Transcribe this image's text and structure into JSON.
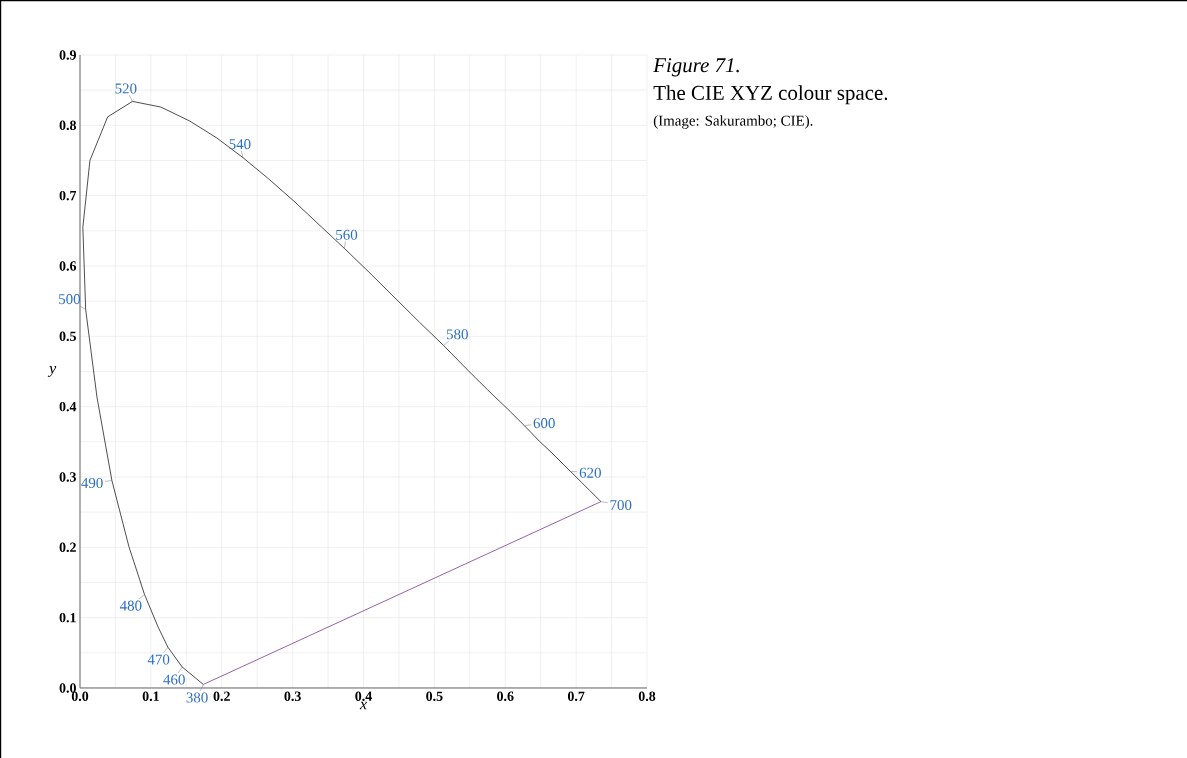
{
  "chart_data": {
    "type": "line",
    "title": "Figure 71.",
    "subtitle": "The CIE XYZ colour space.",
    "xlabel": "x",
    "ylabel": "y",
    "series": [
      {
        "color": "#000000",
        "x": [
          0.174,
          0.144,
          0.124,
          0.11,
          0.091,
          0.069,
          0.045,
          0.024,
          0.008,
          0.004,
          0.014,
          0.039,
          0.074,
          0.114,
          0.155,
          0.193,
          0.23,
          0.266,
          0.302,
          0.337,
          0.373,
          0.409,
          0.444,
          0.479,
          0.513,
          0.545,
          0.575,
          0.603,
          0.627,
          0.648,
          0.666,
          0.692,
          0.708,
          0.719,
          0.735
        ],
        "values": [
          0.005,
          0.03,
          0.058,
          0.087,
          0.133,
          0.201,
          0.295,
          0.413,
          0.538,
          0.655,
          0.75,
          0.812,
          0.834,
          0.826,
          0.806,
          0.782,
          0.754,
          0.724,
          0.692,
          0.659,
          0.625,
          0.59,
          0.555,
          0.52,
          0.487,
          0.454,
          0.424,
          0.397,
          0.373,
          0.351,
          0.334,
          0.308,
          0.292,
          0.281,
          0.265
        ]
      },
      {
        "color": "#6a1b8a",
        "x": [
          0.174,
          0.735
        ],
        "values": [
          0.005,
          0.265
        ]
      }
    ],
    "xlim": [
      0,
      0.8
    ],
    "ylim": [
      0,
      0.9
    ],
    "xticks": [
      {
        "value": 0,
        "label": "0.0"
      },
      0.1,
      0.2,
      0.3,
      0.4,
      0.5,
      0.6,
      0.7,
      0.8
    ],
    "yticks": [
      {
        "value": 0,
        "label": "0.0"
      },
      0.1,
      0.2,
      0.3,
      0.4,
      0.5,
      0.6,
      0.7,
      0.8,
      0.9
    ],
    "grid": true,
    "marker": "none",
    "line_style": "solid",
    "annotations": [
      {
        "text": "380",
        "x": 0.174,
        "y": 0.005
      },
      {
        "text": "460",
        "x": 0.144,
        "y": 0.03
      },
      {
        "text": "470",
        "x": 0.124,
        "y": 0.058
      },
      {
        "text": "480",
        "x": 0.091,
        "y": 0.133
      },
      {
        "text": "490",
        "x": 0.045,
        "y": 0.295
      },
      {
        "text": "500",
        "x": 0.008,
        "y": 0.538
      },
      {
        "text": "520",
        "x": 0.074,
        "y": 0.834
      },
      {
        "text": "540",
        "x": 0.23,
        "y": 0.754
      },
      {
        "text": "560",
        "x": 0.373,
        "y": 0.625
      },
      {
        "text": "580",
        "x": 0.513,
        "y": 0.487
      },
      {
        "text": "600",
        "x": 0.627,
        "y": 0.373
      },
      {
        "text": "620",
        "x": 0.692,
        "y": 0.308
      },
      {
        "text": "700",
        "x": 0.735,
        "y": 0.265
      },
      "(Image: Sakurambo; CIE)."
    ]
  }
}
